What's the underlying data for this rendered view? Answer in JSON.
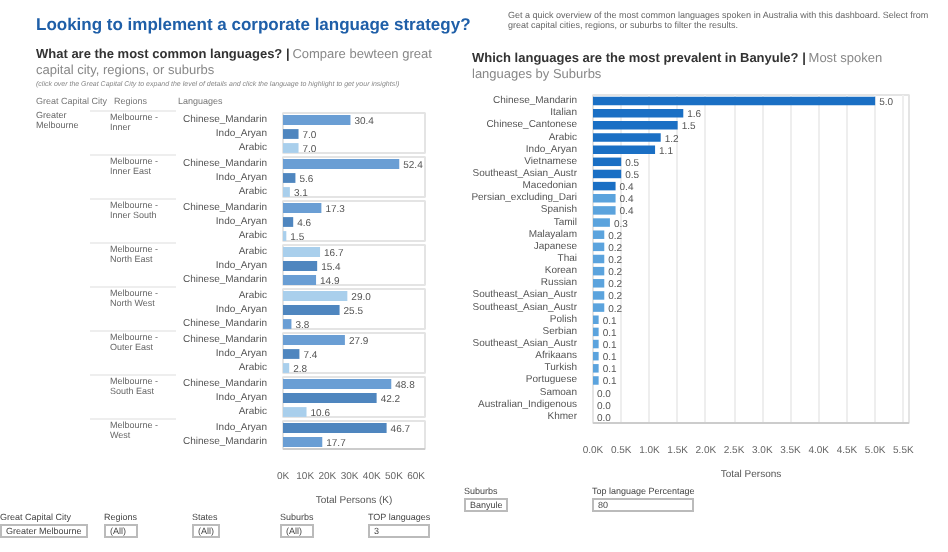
{
  "chart_data": [
    {
      "type": "bar",
      "orientation": "horizontal",
      "title": "What are the most common languages? |",
      "subtitle": "Compare bewteen great capital city, regions, or suburbs",
      "annotations": [
        "(click over the Great Capital City to expand the level of details and click the language to highlight to get your insights!)",
        "Great Capital City",
        "Regions",
        "Languages",
        "Greater Melbourne"
      ],
      "ylabel": "Melbourne - Inner",
      "categories": [
        "Chinese_Mandarin",
        "Indo_Aryan",
        "Arabic"
      ],
      "values": [
        30.4,
        7.0,
        7.0
      ],
      "value_labels": [
        "30.4",
        "7.0",
        "7.0"
      ],
      "colors": [
        "#6a9ed4",
        "#4f86bf",
        "#a9cfec"
      ],
      "xlim": [
        0,
        64
      ],
      "tick_labels": "y"
    },
    {
      "type": "bar",
      "orientation": "horizontal",
      "ylabel": "Melbourne - Inner East",
      "categories": [
        "Chinese_Mandarin",
        "Indo_Aryan",
        "Arabic"
      ],
      "values": [
        52.4,
        5.6,
        3.1
      ],
      "colors": [
        "#6a9ed4",
        "#4f86bf",
        "#a9cfec"
      ],
      "xlim": [
        0,
        64
      ],
      "tick_labels": "y",
      "data_labels": true
    },
    {
      "type": "bar",
      "orientation": "horizontal",
      "ylabel": "Melbourne - Inner South",
      "categories": [
        "Chinese_Mandarin",
        "Indo_Aryan",
        "Arabic"
      ],
      "values": [
        17.3,
        4.6,
        1.5
      ],
      "colors": [
        "#6a9ed4",
        "#4f86bf",
        "#a9cfec"
      ],
      "xlim": [
        0,
        64
      ],
      "tick_labels": "y",
      "data_labels": true
    },
    {
      "type": "bar",
      "orientation": "horizontal",
      "ylabel": "Melbourne - North East",
      "categories": [
        "Arabic",
        "Indo_Aryan",
        "Chinese_Mandarin"
      ],
      "values": [
        16.7,
        15.4,
        14.9
      ],
      "colors": [
        "#a9cfec",
        "#4f86bf",
        "#6a9ed4"
      ],
      "xlim": [
        0,
        64
      ],
      "tick_labels": "y",
      "data_labels": true
    },
    {
      "type": "bar",
      "orientation": "horizontal",
      "ylabel": "Melbourne - North West",
      "categories": [
        "Arabic",
        "Indo_Aryan",
        "Chinese_Mandarin"
      ],
      "values": [
        29.0,
        25.5,
        3.8
      ],
      "value_labels": [
        "29.0",
        "25.5",
        "3.8"
      ],
      "colors": [
        "#a9cfec",
        "#4f86bf",
        "#6a9ed4"
      ],
      "xlim": [
        0,
        64
      ],
      "tick_labels": "y"
    },
    {
      "type": "bar",
      "orientation": "horizontal",
      "ylabel": "Melbourne - Outer East",
      "categories": [
        "Chinese_Mandarin",
        "Indo_Aryan",
        "Arabic"
      ],
      "values": [
        27.9,
        7.4,
        2.8
      ],
      "colors": [
        "#6a9ed4",
        "#4f86bf",
        "#a9cfec"
      ],
      "xlim": [
        0,
        64
      ],
      "tick_labels": "y",
      "data_labels": true
    },
    {
      "type": "bar",
      "orientation": "horizontal",
      "ylabel": "Melbourne - South East",
      "categories": [
        "Chinese_Mandarin",
        "Indo_Aryan",
        "Arabic"
      ],
      "values": [
        48.8,
        42.2,
        10.6
      ],
      "colors": [
        "#6a9ed4",
        "#4f86bf",
        "#a9cfec"
      ],
      "xlim": [
        0,
        64
      ],
      "tick_labels": "y",
      "data_labels": true
    },
    {
      "type": "bar",
      "orientation": "horizontal",
      "ylabel": "Melbourne - West",
      "xlabel": "Total Persons (K)",
      "categories": [
        "Indo_Aryan",
        "Chinese_Mandarin"
      ],
      "values": [
        46.7,
        17.7
      ],
      "colors": [
        "#4f86bf",
        "#6a9ed4"
      ],
      "xlim": [
        0,
        64
      ],
      "xticks": [
        {
          "value": 0,
          "label": "0K"
        },
        {
          "value": 10,
          "label": "10K"
        },
        {
          "value": 20,
          "label": "20K"
        },
        {
          "value": 30,
          "label": "30K"
        },
        {
          "value": 40,
          "label": "40K"
        },
        {
          "value": 50,
          "label": "50K"
        },
        {
          "value": 60,
          "label": "60K"
        }
      ],
      "data_labels": true,
      "annotations": [
        "Great Capital City",
        "Greater Melbourne",
        "Regions",
        "(All)",
        "States",
        "(All)",
        "Suburbs",
        "(All)",
        "TOP languages",
        "3"
      ]
    },
    {
      "type": "bar",
      "orientation": "horizontal",
      "title": "Which languages are the most prevalent in Banyule? |",
      "subtitle": "Most spoken languages by Suburbs",
      "xlabel": "Total Persons",
      "categories": [
        "Chinese_Mandarin",
        "Italian",
        "Chinese_Cantonese",
        "Arabic",
        "Indo_Aryan",
        "Vietnamese",
        "Southeast_Asian_Austr",
        "Macedonian",
        "Persian_excluding_Dari",
        "Spanish",
        "Tamil",
        "Malayalam",
        "Japanese",
        "Thai",
        "Korean",
        "Russian",
        "Southeast_Asian_Austr",
        "Southeast_Asian_Austr",
        "Polish",
        "Serbian",
        "Southeast_Asian_Austr",
        "Afrikaans",
        "Turkish",
        "Portuguese",
        "Samoan",
        "Australian_Indigenous",
        "Khmer"
      ],
      "values": [
        5.0,
        1.6,
        1.5,
        1.2,
        1.1,
        0.5,
        0.5,
        0.4,
        0.4,
        0.4,
        0.3,
        0.2,
        0.2,
        0.2,
        0.2,
        0.2,
        0.2,
        0.2,
        0.1,
        0.1,
        0.1,
        0.1,
        0.1,
        0.1,
        0.0,
        0.0,
        0.0
      ],
      "colors": [
        "#1a6fc4",
        "#1a6fc4",
        "#1a6fc4",
        "#1a6fc4",
        "#1a6fc4",
        "#1a6fc4",
        "#1a6fc4",
        "#1a6fc4",
        "#5ba3dd",
        "#5ba3dd",
        "#5ba3dd",
        "#5ba3dd",
        "#5ba3dd",
        "#5ba3dd",
        "#5ba3dd",
        "#5ba3dd",
        "#5ba3dd",
        "#5ba3dd",
        "#5ba3dd",
        "#5ba3dd",
        "#5ba3dd",
        "#5ba3dd",
        "#5ba3dd",
        "#5ba3dd",
        "#5ba3dd",
        "#5ba3dd",
        "#5ba3dd"
      ],
      "xlim": [
        0,
        5.6
      ],
      "xticks": [
        {
          "value": 0,
          "label": "0.0K"
        },
        {
          "value": 0.5,
          "label": "0.5K"
        },
        {
          "value": 1.0,
          "label": "1.0K"
        },
        {
          "value": 1.5,
          "label": "1.5K"
        },
        {
          "value": 2.0,
          "label": "2.0K"
        },
        {
          "value": 2.5,
          "label": "2.5K"
        },
        {
          "value": 3.0,
          "label": "3.0K"
        },
        {
          "value": 3.5,
          "label": "3.5K"
        },
        {
          "value": 4.0,
          "label": "4.0K"
        },
        {
          "value": 4.5,
          "label": "4.5K"
        },
        {
          "value": 5.0,
          "label": "5.0K"
        },
        {
          "value": 5.5,
          "label": "5.5K"
        }
      ],
      "grid": "x",
      "value_labels": [
        "5.0",
        "1.6",
        "1.5",
        "1.2",
        "1.1",
        "0.5",
        "0.5",
        "0.4",
        "0.4",
        "0.4",
        "0.3",
        "0.2",
        "0.2",
        "0.2",
        "0.2",
        "0.2",
        "0.2",
        "0.2",
        "0.1",
        "0.1",
        "0.1",
        "0.1",
        "0.1",
        "0.1",
        "0.0",
        "0.0",
        "0.0"
      ],
      "annotations": [
        "Suburbs",
        "Banyule",
        "Top language Percentage",
        "80"
      ]
    },
    {
      "type": "other",
      "title": "Looking to implement a corporate language strategy?",
      "subtitle": "Get a quick overview of the most common languages spoken in Australia with this dashboard. Select from great capital cities, regions, or suburbs to filter the results."
    }
  ]
}
